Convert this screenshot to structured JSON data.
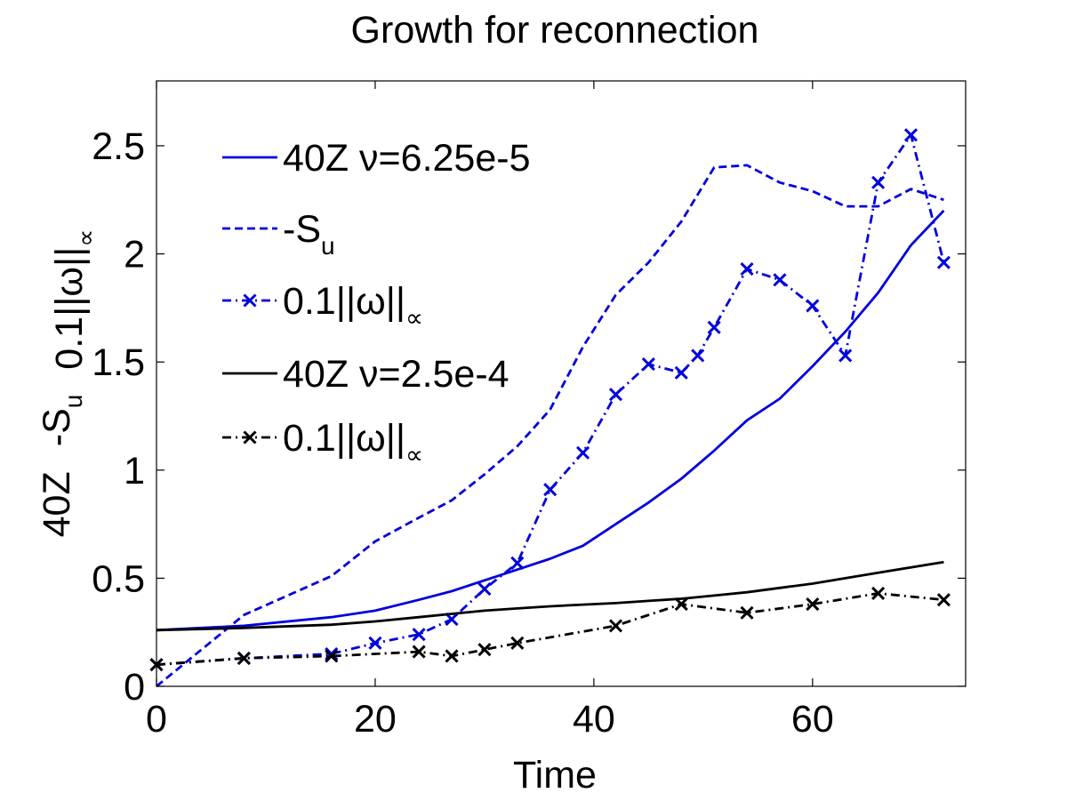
{
  "chart_data": {
    "type": "line",
    "title": "Growth for reconnection",
    "xlabel": "Time",
    "ylabel_parts": [
      {
        "text": "40Z"
      },
      {
        "text": "-S",
        "sub": "u"
      },
      {
        "text": "0.1||ω||",
        "sub": "∝"
      }
    ],
    "xlim": [
      0,
      74
    ],
    "ylim": [
      0,
      2.8
    ],
    "xticks": [
      0,
      20,
      40,
      60
    ],
    "yticks": [
      0,
      0.5,
      1,
      1.5,
      2,
      2.5
    ],
    "xtick_labels": [
      "0",
      "20",
      "40",
      "60"
    ],
    "ytick_labels": [
      "0",
      "0.5",
      "1",
      "1.5",
      "2",
      "2.5"
    ],
    "legend_position": "top-left",
    "series": [
      {
        "name": "40Z ν=6.25e-5",
        "legend_text": "40Z ν=6.25e-5",
        "color": "#0000dd",
        "style": "solid",
        "marker": "none",
        "x": [
          0,
          8,
          16,
          20,
          24,
          27,
          30,
          33,
          36,
          39,
          42,
          45,
          48,
          51,
          54,
          57,
          60,
          63,
          66,
          69,
          72
        ],
        "y": [
          0.26,
          0.28,
          0.32,
          0.35,
          0.4,
          0.44,
          0.49,
          0.54,
          0.59,
          0.65,
          0.75,
          0.85,
          0.96,
          1.09,
          1.23,
          1.33,
          1.48,
          1.64,
          1.82,
          2.04,
          2.2
        ]
      },
      {
        "name": "-S_u",
        "legend_text": "-S",
        "legend_sub": "u",
        "color": "#0000dd",
        "style": "dashed",
        "marker": "none",
        "x": [
          0,
          8,
          16,
          20,
          24,
          27,
          30,
          33,
          36,
          39,
          42,
          45,
          48,
          51,
          54,
          57,
          60,
          63,
          66,
          69,
          72
        ],
        "y": [
          0.0,
          0.33,
          0.51,
          0.67,
          0.78,
          0.86,
          0.98,
          1.11,
          1.28,
          1.57,
          1.81,
          1.96,
          2.15,
          2.4,
          2.41,
          2.33,
          2.29,
          2.22,
          2.22,
          2.3,
          2.25
        ]
      },
      {
        "name": "0.1||ω||∝ (ν=6.25e-5)",
        "legend_text": "0.1||ω||",
        "legend_sub": "∝",
        "color": "#0000dd",
        "style": "dashdot",
        "marker": "x",
        "x": [
          0,
          8,
          16,
          20,
          24,
          27,
          30,
          33,
          36,
          39,
          42,
          45,
          48,
          49.5,
          51,
          54,
          57,
          60,
          63,
          66,
          69,
          72
        ],
        "y": [
          0.1,
          0.13,
          0.15,
          0.2,
          0.24,
          0.31,
          0.45,
          0.57,
          0.91,
          1.08,
          1.35,
          1.49,
          1.45,
          1.53,
          1.66,
          1.93,
          1.88,
          1.76,
          1.53,
          2.33,
          2.55,
          1.96
        ]
      },
      {
        "name": "40Z ν=2.5e-4",
        "legend_text": "40Z ν=2.5e-4",
        "color": "#000000",
        "style": "solid",
        "marker": "none",
        "x": [
          0,
          8,
          16,
          20,
          24,
          27,
          30,
          33,
          36,
          39,
          42,
          45,
          48,
          51,
          54,
          57,
          60,
          63,
          66,
          69,
          72
        ],
        "y": [
          0.26,
          0.27,
          0.285,
          0.3,
          0.32,
          0.335,
          0.35,
          0.36,
          0.37,
          0.378,
          0.385,
          0.395,
          0.405,
          0.42,
          0.435,
          0.455,
          0.475,
          0.5,
          0.525,
          0.55,
          0.575
        ]
      },
      {
        "name": "0.1||ω||∝ (ν=2.5e-4)",
        "legend_text": "0.1||ω||",
        "legend_sub": "∝",
        "color": "#000000",
        "style": "dashdot",
        "marker": "x",
        "x": [
          0,
          8,
          16,
          24,
          27,
          30,
          33,
          42,
          48,
          54,
          60,
          66,
          72
        ],
        "y": [
          0.1,
          0.13,
          0.14,
          0.16,
          0.14,
          0.17,
          0.2,
          0.28,
          0.38,
          0.34,
          0.38,
          0.43,
          0.4
        ]
      }
    ]
  }
}
